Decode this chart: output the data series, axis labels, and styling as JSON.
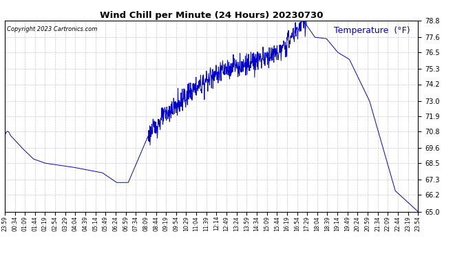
{
  "title": "Wind Chill per Minute (24 Hours) 20230730",
  "ylabel": "Temperature  (°F)",
  "copyright": "Copyright 2023 Cartronics.com",
  "line_color": "#0000cc",
  "background_color": "#ffffff",
  "grid_color": "#c8c8c8",
  "ylim": [
    65.0,
    78.8
  ],
  "yticks": [
    65.0,
    66.2,
    67.3,
    68.5,
    69.6,
    70.8,
    71.9,
    73.0,
    74.2,
    75.3,
    76.5,
    77.6,
    78.8
  ],
  "x_labels": [
    "23:59",
    "00:34",
    "01:09",
    "01:44",
    "02:19",
    "02:54",
    "03:29",
    "04:04",
    "04:39",
    "05:14",
    "05:49",
    "06:24",
    "06:59",
    "07:34",
    "08:09",
    "08:44",
    "09:19",
    "09:54",
    "10:29",
    "11:04",
    "11:39",
    "12:14",
    "12:49",
    "13:24",
    "13:59",
    "14:34",
    "15:09",
    "15:44",
    "16:19",
    "16:54",
    "17:29",
    "18:04",
    "18:39",
    "19:14",
    "19:49",
    "20:24",
    "20:59",
    "21:34",
    "22:09",
    "22:44",
    "23:19",
    "23:54"
  ]
}
